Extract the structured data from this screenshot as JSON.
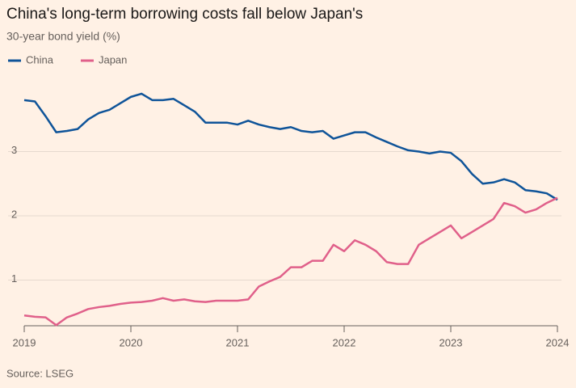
{
  "chart_data": {
    "type": "line",
    "title": "China's long-term borrowing costs fall below Japan's",
    "subtitle": "30-year bond yield (%)",
    "source": "Source: LSEG",
    "x": [
      2019.0,
      2019.1,
      2019.2,
      2019.3,
      2019.4,
      2019.5,
      2019.6,
      2019.7,
      2019.8,
      2019.9,
      2020.0,
      2020.1,
      2020.2,
      2020.3,
      2020.4,
      2020.5,
      2020.6,
      2020.7,
      2020.8,
      2020.9,
      2021.0,
      2021.1,
      2021.2,
      2021.3,
      2021.4,
      2021.5,
      2021.6,
      2021.7,
      2021.8,
      2021.9,
      2022.0,
      2022.1,
      2022.2,
      2022.3,
      2022.4,
      2022.5,
      2022.6,
      2022.7,
      2022.8,
      2022.9,
      2023.0,
      2023.1,
      2023.2,
      2023.3,
      2023.4,
      2023.5,
      2023.6,
      2023.7,
      2023.8,
      2023.9,
      2024.0
    ],
    "series": [
      {
        "name": "China",
        "color": "#0f5499",
        "values": [
          3.8,
          3.78,
          3.55,
          3.3,
          3.32,
          3.35,
          3.5,
          3.6,
          3.65,
          3.75,
          3.85,
          3.9,
          3.8,
          3.8,
          3.82,
          3.72,
          3.62,
          3.45,
          3.45,
          3.45,
          3.42,
          3.48,
          3.42,
          3.38,
          3.35,
          3.38,
          3.32,
          3.3,
          3.32,
          3.2,
          3.25,
          3.3,
          3.3,
          3.22,
          3.15,
          3.08,
          3.02,
          3.0,
          2.97,
          3.0,
          2.98,
          2.85,
          2.65,
          2.5,
          2.52,
          2.57,
          2.52,
          2.4,
          2.38,
          2.35,
          2.25
        ]
      },
      {
        "name": "Japan",
        "color": "#e0608a",
        "values": [
          0.45,
          0.43,
          0.42,
          0.3,
          0.42,
          0.48,
          0.55,
          0.58,
          0.6,
          0.63,
          0.65,
          0.66,
          0.68,
          0.72,
          0.68,
          0.7,
          0.67,
          0.66,
          0.68,
          0.68,
          0.68,
          0.7,
          0.9,
          0.98,
          1.05,
          1.2,
          1.2,
          1.3,
          1.3,
          1.55,
          1.45,
          1.62,
          1.55,
          1.45,
          1.28,
          1.25,
          1.25,
          1.55,
          1.65,
          1.75,
          1.85,
          1.65,
          1.75,
          1.85,
          1.95,
          2.2,
          2.15,
          2.05,
          2.1,
          2.2,
          2.28
        ]
      }
    ],
    "xlim": [
      2019.0,
      2024.0
    ],
    "xticks": [
      2019,
      2020,
      2021,
      2022,
      2023,
      2024
    ],
    "ylim": [
      0.29,
      4.1
    ],
    "yticks": [
      1,
      2,
      3
    ],
    "grid": true
  }
}
